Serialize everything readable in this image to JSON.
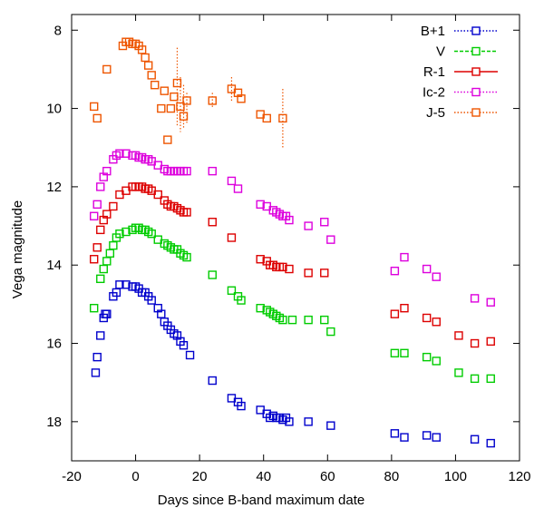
{
  "chart_data": {
    "type": "scatter",
    "xlabel": "Days since B-band maximum date",
    "ylabel": "Vega magnitude",
    "xlim": [
      -20,
      120
    ],
    "ylim": [
      19,
      7.6
    ],
    "y_inverted": true,
    "xticks": [
      -20,
      0,
      20,
      40,
      60,
      80,
      100,
      120
    ],
    "yticks": [
      8,
      10,
      12,
      14,
      16,
      18
    ],
    "legend_position": "top-right",
    "marker": "open-square",
    "series": [
      {
        "name": "B+1",
        "color": "#0000cc",
        "legend_line": "dotted",
        "points": [
          [
            -12.5,
            16.75
          ],
          [
            -12,
            16.35
          ],
          [
            -11,
            15.8
          ],
          [
            -10,
            15.35
          ],
          [
            -9.5,
            15.25
          ],
          [
            -9,
            15.25
          ],
          [
            -7,
            14.8
          ],
          [
            -6,
            14.7
          ],
          [
            -5,
            14.5
          ],
          [
            -3,
            14.5
          ],
          [
            -1,
            14.55
          ],
          [
            0,
            14.55
          ],
          [
            1,
            14.6
          ],
          [
            2,
            14.7
          ],
          [
            3,
            14.7
          ],
          [
            4,
            14.8
          ],
          [
            5,
            14.9
          ],
          [
            7,
            15.1
          ],
          [
            8,
            15.25
          ],
          [
            9,
            15.45
          ],
          [
            10,
            15.55
          ],
          [
            11,
            15.65
          ],
          [
            12,
            15.75
          ],
          [
            13,
            15.8
          ],
          [
            14,
            15.95
          ],
          [
            15,
            16.05
          ],
          [
            17,
            16.3
          ],
          [
            24,
            16.95
          ],
          [
            30,
            17.4
          ],
          [
            32,
            17.5
          ],
          [
            33,
            17.6
          ],
          [
            39,
            17.7
          ],
          [
            41,
            17.8
          ],
          [
            42,
            17.9
          ],
          [
            43,
            17.85
          ],
          [
            44,
            17.9
          ],
          [
            45,
            17.9
          ],
          [
            46,
            17.95
          ],
          [
            47,
            17.9
          ],
          [
            48,
            18.0
          ],
          [
            54,
            18.0
          ],
          [
            61,
            18.1
          ],
          [
            81,
            18.3
          ],
          [
            84,
            18.4
          ],
          [
            91,
            18.35
          ],
          [
            94,
            18.4
          ],
          [
            106,
            18.45
          ],
          [
            111,
            18.55
          ]
        ]
      },
      {
        "name": "V",
        "color": "#00cc00",
        "legend_line": "dashed",
        "points": [
          [
            -13,
            15.1
          ],
          [
            -11,
            14.35
          ],
          [
            -10,
            14.1
          ],
          [
            -9,
            13.9
          ],
          [
            -8,
            13.7
          ],
          [
            -7,
            13.5
          ],
          [
            -6,
            13.3
          ],
          [
            -5,
            13.2
          ],
          [
            -3,
            13.15
          ],
          [
            -1,
            13.1
          ],
          [
            0,
            13.05
          ],
          [
            1,
            13.05
          ],
          [
            2,
            13.1
          ],
          [
            3,
            13.1
          ],
          [
            4,
            13.15
          ],
          [
            5,
            13.2
          ],
          [
            7,
            13.35
          ],
          [
            9,
            13.45
          ],
          [
            10,
            13.5
          ],
          [
            11,
            13.55
          ],
          [
            12,
            13.6
          ],
          [
            13,
            13.6
          ],
          [
            14,
            13.7
          ],
          [
            15,
            13.75
          ],
          [
            16,
            13.8
          ],
          [
            24,
            14.25
          ],
          [
            30,
            14.65
          ],
          [
            32,
            14.8
          ],
          [
            33,
            14.9
          ],
          [
            39,
            15.1
          ],
          [
            41,
            15.15
          ],
          [
            42,
            15.2
          ],
          [
            43,
            15.25
          ],
          [
            44,
            15.3
          ],
          [
            45,
            15.35
          ],
          [
            46,
            15.4
          ],
          [
            49,
            15.4
          ],
          [
            54,
            15.4
          ],
          [
            59,
            15.4
          ],
          [
            61,
            15.7
          ],
          [
            81,
            16.25
          ],
          [
            84,
            16.25
          ],
          [
            91,
            16.35
          ],
          [
            94,
            16.45
          ],
          [
            101,
            16.75
          ],
          [
            106,
            16.9
          ],
          [
            111,
            16.9
          ]
        ]
      },
      {
        "name": "R-1",
        "color": "#dd0000",
        "legend_line": "solid",
        "points": [
          [
            -13,
            13.85
          ],
          [
            -12,
            13.55
          ],
          [
            -11,
            13.1
          ],
          [
            -10,
            12.85
          ],
          [
            -9,
            12.7
          ],
          [
            -7,
            12.5
          ],
          [
            -5,
            12.2
          ],
          [
            -3,
            12.1
          ],
          [
            -1,
            12.0
          ],
          [
            0,
            12.0
          ],
          [
            1,
            12.0
          ],
          [
            2,
            12.0
          ],
          [
            3,
            12.05
          ],
          [
            4,
            12.05
          ],
          [
            5,
            12.1
          ],
          [
            7,
            12.2
          ],
          [
            9,
            12.35
          ],
          [
            10,
            12.45
          ],
          [
            11,
            12.5
          ],
          [
            12,
            12.5
          ],
          [
            13,
            12.55
          ],
          [
            14,
            12.6
          ],
          [
            15,
            12.65
          ],
          [
            16,
            12.65
          ],
          [
            24,
            12.9
          ],
          [
            30,
            13.3
          ],
          [
            39,
            13.85
          ],
          [
            41,
            13.9
          ],
          [
            42,
            14.0
          ],
          [
            43,
            14.0
          ],
          [
            44,
            14.05
          ],
          [
            45,
            14.05
          ],
          [
            46,
            14.05
          ],
          [
            48,
            14.1
          ],
          [
            54,
            14.2
          ],
          [
            59,
            14.2
          ],
          [
            81,
            15.25
          ],
          [
            84,
            15.1
          ],
          [
            91,
            15.35
          ],
          [
            94,
            15.45
          ],
          [
            101,
            15.8
          ],
          [
            106,
            16.0
          ],
          [
            111,
            15.95
          ]
        ]
      },
      {
        "name": "Ic-2",
        "color": "#dd00dd",
        "legend_line": "dotted",
        "points": [
          [
            -13,
            12.75
          ],
          [
            -12,
            12.45
          ],
          [
            -11,
            12.0
          ],
          [
            -10,
            11.75
          ],
          [
            -9,
            11.6
          ],
          [
            -7,
            11.3
          ],
          [
            -6,
            11.2
          ],
          [
            -5,
            11.15
          ],
          [
            -3,
            11.15
          ],
          [
            -1,
            11.2
          ],
          [
            0,
            11.2
          ],
          [
            1,
            11.25
          ],
          [
            2,
            11.25
          ],
          [
            3,
            11.3
          ],
          [
            4,
            11.3
          ],
          [
            5,
            11.35
          ],
          [
            7,
            11.45
          ],
          [
            9,
            11.55
          ],
          [
            10,
            11.6
          ],
          [
            11,
            11.6
          ],
          [
            12,
            11.6
          ],
          [
            13,
            11.6
          ],
          [
            14,
            11.6
          ],
          [
            15,
            11.6
          ],
          [
            16,
            11.6
          ],
          [
            24,
            11.6
          ],
          [
            30,
            11.85
          ],
          [
            32,
            12.05
          ],
          [
            39,
            12.45
          ],
          [
            41,
            12.5
          ],
          [
            43,
            12.6
          ],
          [
            44,
            12.65
          ],
          [
            45,
            12.7
          ],
          [
            46,
            12.75
          ],
          [
            47,
            12.75
          ],
          [
            48,
            12.85
          ],
          [
            54,
            13.0
          ],
          [
            59,
            12.9
          ],
          [
            61,
            13.35
          ],
          [
            81,
            14.15
          ],
          [
            84,
            13.8
          ],
          [
            91,
            14.1
          ],
          [
            94,
            14.3
          ],
          [
            106,
            14.85
          ],
          [
            111,
            14.95
          ]
        ]
      },
      {
        "name": "J-5",
        "color": "#ee5500",
        "legend_line": "dotted",
        "points": [
          [
            -13,
            9.95
          ],
          [
            -12,
            10.25
          ],
          [
            -9,
            9.0
          ],
          [
            -4,
            8.4
          ],
          [
            -3,
            8.3
          ],
          [
            -2,
            8.3
          ],
          [
            -1,
            8.35
          ],
          [
            0,
            8.35
          ],
          [
            1,
            8.4
          ],
          [
            2,
            8.5
          ],
          [
            3,
            8.7
          ],
          [
            4,
            8.9
          ],
          [
            5,
            9.15
          ],
          [
            6,
            9.4
          ],
          [
            8,
            10.0
          ],
          [
            9,
            9.55
          ],
          [
            10,
            10.8
          ],
          [
            11,
            10.0
          ],
          [
            12,
            9.7
          ],
          [
            13,
            9.35
          ],
          [
            14,
            9.95
          ],
          [
            15,
            10.2
          ],
          [
            16,
            9.8
          ],
          [
            24,
            9.8
          ],
          [
            30,
            9.5
          ],
          [
            32,
            9.6
          ],
          [
            33,
            9.75
          ],
          [
            39,
            10.15
          ],
          [
            41,
            10.25
          ],
          [
            46,
            10.25
          ]
        ],
        "errorbars": [
          [
            13,
            8.45,
            10.45
          ],
          [
            14,
            9.2,
            10.6
          ],
          [
            15,
            9.4,
            10.5
          ],
          [
            16,
            9.6,
            10.4
          ],
          [
            24,
            9.6,
            10.0
          ],
          [
            30,
            9.2,
            9.8
          ],
          [
            46,
            9.5,
            11.0
          ]
        ]
      }
    ]
  }
}
